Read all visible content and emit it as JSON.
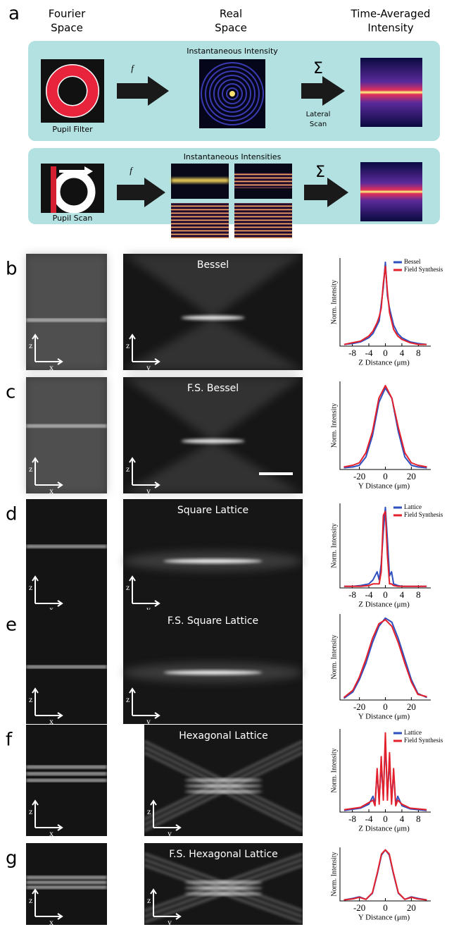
{
  "panel_a": {
    "label": "a",
    "headings": [
      [
        "Fourier",
        "Space"
      ],
      [
        "Real",
        "Space"
      ],
      [
        "Time-Averaged",
        "Intensity"
      ]
    ],
    "top_row": {
      "title": "Instantaneous Intensity",
      "pupil": "Pupil Filter",
      "transform": "f",
      "sum": "Σ",
      "scan": [
        "Lateral",
        "Scan"
      ]
    },
    "bottom_row": {
      "title": "Instantaneous Intensities",
      "pupil": "Pupil Scan",
      "transform": "f",
      "sum": "Σ"
    }
  },
  "panels": [
    {
      "label": "b",
      "side_axes": [
        "z",
        "x"
      ],
      "main_axes": [
        "z",
        "y"
      ],
      "title": "Bessel",
      "chart_data": {
        "type": "line",
        "ylabel": "Norm. Intensity",
        "xlabel": "Z Distance (μm)",
        "xlim": [
          -11,
          11
        ],
        "xticks": [
          -8,
          -4,
          0,
          4,
          8
        ],
        "ylim": [
          0,
          1.05
        ],
        "legend": "upper right",
        "series": [
          {
            "name": "Bessel",
            "color": "#2f4fbf",
            "x": [
              -10,
              -8,
              -6,
              -4,
              -3,
              -2,
              -1.5,
              -1,
              -0.5,
              0,
              0.5,
              1,
              1.5,
              2,
              3,
              4,
              6,
              8,
              10
            ],
            "values": [
              0.02,
              0.03,
              0.05,
              0.1,
              0.15,
              0.25,
              0.3,
              0.5,
              0.7,
              1,
              0.6,
              0.45,
              0.35,
              0.25,
              0.15,
              0.1,
              0.05,
              0.03,
              0.02
            ]
          },
          {
            "name": "Field Synthesis",
            "color": "#e3202b",
            "x": [
              -10,
              -8,
              -6,
              -4,
              -3,
              -2,
              -1.5,
              -1,
              -0.5,
              0,
              0.5,
              1,
              1.5,
              2,
              3,
              4,
              6,
              8,
              10
            ],
            "values": [
              0.02,
              0.04,
              0.06,
              0.12,
              0.18,
              0.28,
              0.35,
              0.45,
              0.75,
              0.95,
              0.65,
              0.4,
              0.3,
              0.2,
              0.12,
              0.08,
              0.04,
              0.02,
              0.02
            ]
          }
        ]
      }
    },
    {
      "label": "c",
      "side_axes": [
        "z",
        "x"
      ],
      "main_axes": [
        "z",
        "y"
      ],
      "title": "F.S. Bessel",
      "chart_data": {
        "type": "line",
        "ylabel": "Norm. Intensity",
        "xlabel": "Y Distance (μm)",
        "xlim": [
          -35,
          35
        ],
        "xticks": [
          -20,
          0,
          20
        ],
        "ylim": [
          0,
          1.05
        ],
        "series": [
          {
            "color": "#2f4fbf",
            "x": [
              -32,
              -25,
              -20,
              -15,
              -10,
              -5,
              0,
              5,
              10,
              15,
              20,
              25,
              32
            ],
            "values": [
              0.02,
              0.03,
              0.05,
              0.15,
              0.4,
              0.8,
              0.97,
              0.85,
              0.45,
              0.15,
              0.05,
              0.03,
              0.02
            ]
          },
          {
            "color": "#e3202b",
            "x": [
              -32,
              -25,
              -20,
              -15,
              -10,
              -5,
              0,
              5,
              10,
              15,
              20,
              25,
              32
            ],
            "values": [
              0.03,
              0.05,
              0.08,
              0.2,
              0.45,
              0.85,
              1,
              0.85,
              0.5,
              0.2,
              0.08,
              0.05,
              0.03
            ]
          }
        ]
      }
    },
    {
      "label": "d",
      "side_axes": [
        "z",
        "x"
      ],
      "main_axes": [
        "z",
        "y"
      ],
      "title": "Square Lattice",
      "chart_data": {
        "type": "line",
        "ylabel": "Norm. Intensity",
        "xlabel": "Z Distance (μm)",
        "xlim": [
          -11,
          11
        ],
        "xticks": [
          -8,
          -4,
          0,
          4,
          8
        ],
        "ylim": [
          0,
          1.05
        ],
        "legend": "upper right",
        "series": [
          {
            "name": "Lattice",
            "color": "#2f4fbf",
            "x": [
              -10,
              -8,
              -6,
              -4,
              -3,
              -2,
              -1.5,
              -1,
              -0.5,
              0,
              0.5,
              1,
              1.5,
              2,
              3,
              4,
              6,
              8,
              10
            ],
            "values": [
              0.02,
              0.02,
              0.03,
              0.05,
              0.1,
              0.2,
              0.1,
              0.3,
              0.7,
              1,
              0.6,
              0.15,
              0.2,
              0.05,
              0.03,
              0.02,
              0.02,
              0.02,
              0.02
            ]
          },
          {
            "name": "Field Synthesis",
            "color": "#e3202b",
            "x": [
              -10,
              -8,
              -6,
              -4,
              -3,
              -2,
              -1.5,
              -1,
              -0.5,
              0,
              0.5,
              1,
              1.5,
              2,
              3,
              4,
              6,
              8,
              10
            ],
            "values": [
              0.02,
              0.02,
              0.02,
              0.03,
              0.05,
              0.05,
              0.05,
              0.2,
              0.9,
              0.95,
              0.4,
              0.05,
              0.05,
              0.03,
              0.02,
              0.02,
              0.02,
              0.02,
              0.02
            ]
          }
        ]
      }
    },
    {
      "label": "e",
      "side_axes": [
        "z",
        "x"
      ],
      "main_axes": [
        "z",
        "y"
      ],
      "title": "F.S. Square Lattice",
      "chart_data": {
        "type": "line",
        "ylabel": "Norm. Intensity",
        "xlabel": "Y Distance (μm)",
        "xlim": [
          -35,
          35
        ],
        "xticks": [
          -20,
          0,
          20
        ],
        "ylim": [
          0,
          1.05
        ],
        "series": [
          {
            "color": "#2f4fbf",
            "x": [
              -32,
              -25,
              -20,
              -15,
              -10,
              -5,
              0,
              5,
              10,
              15,
              20,
              25,
              32
            ],
            "values": [
              0.02,
              0.1,
              0.25,
              0.45,
              0.7,
              0.9,
              1,
              0.95,
              0.75,
              0.5,
              0.25,
              0.08,
              0.03
            ]
          },
          {
            "color": "#e3202b",
            "x": [
              -32,
              -25,
              -20,
              -15,
              -10,
              -5,
              0,
              5,
              10,
              15,
              20,
              25,
              32
            ],
            "values": [
              0.03,
              0.12,
              0.28,
              0.5,
              0.75,
              0.93,
              0.98,
              0.9,
              0.7,
              0.45,
              0.22,
              0.07,
              0.04
            ]
          }
        ]
      }
    },
    {
      "label": "f",
      "side_axes": [
        "z",
        "x"
      ],
      "main_axes": [
        "z",
        "y"
      ],
      "title": "Hexagonal Lattice",
      "chart_data": {
        "type": "line",
        "ylabel": "Norm. Intensity",
        "xlabel": "Z Distance (μm)",
        "xlim": [
          -11,
          11
        ],
        "xticks": [
          -8,
          -4,
          0,
          4,
          8
        ],
        "ylim": [
          0,
          1.05
        ],
        "legend": "upper right",
        "series": [
          {
            "name": "Lattice",
            "color": "#2f4fbf",
            "x": [
              -10,
              -6,
              -4,
              -3,
              -2.5,
              -2,
              -1.5,
              -1,
              -0.5,
              0,
              0.5,
              1,
              1.5,
              2,
              2.5,
              3,
              4,
              6,
              10
            ],
            "values": [
              0.02,
              0.05,
              0.1,
              0.2,
              0.1,
              0.5,
              0.15,
              0.6,
              0.2,
              0.9,
              0.2,
              0.65,
              0.15,
              0.5,
              0.1,
              0.2,
              0.08,
              0.04,
              0.02
            ]
          },
          {
            "name": "Field Synthesis",
            "color": "#e3202b",
            "x": [
              -10,
              -6,
              -4,
              -3,
              -2.5,
              -2,
              -1.5,
              -1,
              -0.5,
              0,
              0.5,
              1,
              1.5,
              2,
              2.5,
              3,
              4,
              6,
              10
            ],
            "values": [
              0.03,
              0.06,
              0.12,
              0.15,
              0.08,
              0.55,
              0.1,
              0.7,
              0.15,
              1,
              0.15,
              0.75,
              0.1,
              0.55,
              0.08,
              0.15,
              0.1,
              0.05,
              0.03
            ]
          }
        ]
      }
    },
    {
      "label": "g",
      "side_axes": [
        "z",
        "x"
      ],
      "main_axes": [
        "z",
        "y"
      ],
      "title": "F.S. Hexagonal Lattice",
      "chart_data": {
        "type": "line",
        "ylabel": "Norm. Intensity",
        "xlabel": "Y Distance (μm)",
        "xlim": [
          -35,
          35
        ],
        "xticks": [
          -20,
          0,
          20
        ],
        "ylim": [
          0,
          1.05
        ],
        "series": [
          {
            "color": "#2f4fbf",
            "x": [
              -32,
              -25,
              -20,
              -15,
              -10,
              -6,
              -3,
              0,
              3,
              6,
              10,
              15,
              20,
              25,
              32
            ],
            "values": [
              0.02,
              0.05,
              0.08,
              0.03,
              0.15,
              0.55,
              0.9,
              1,
              0.9,
              0.55,
              0.15,
              0.03,
              0.08,
              0.05,
              0.02
            ]
          },
          {
            "color": "#e3202b",
            "x": [
              -32,
              -25,
              -20,
              -15,
              -10,
              -6,
              -3,
              0,
              3,
              6,
              10,
              15,
              20,
              25,
              32
            ],
            "values": [
              0.02,
              0.04,
              0.07,
              0.03,
              0.16,
              0.57,
              0.92,
              1,
              0.92,
              0.57,
              0.16,
              0.03,
              0.07,
              0.04,
              0.02
            ]
          }
        ]
      }
    }
  ]
}
